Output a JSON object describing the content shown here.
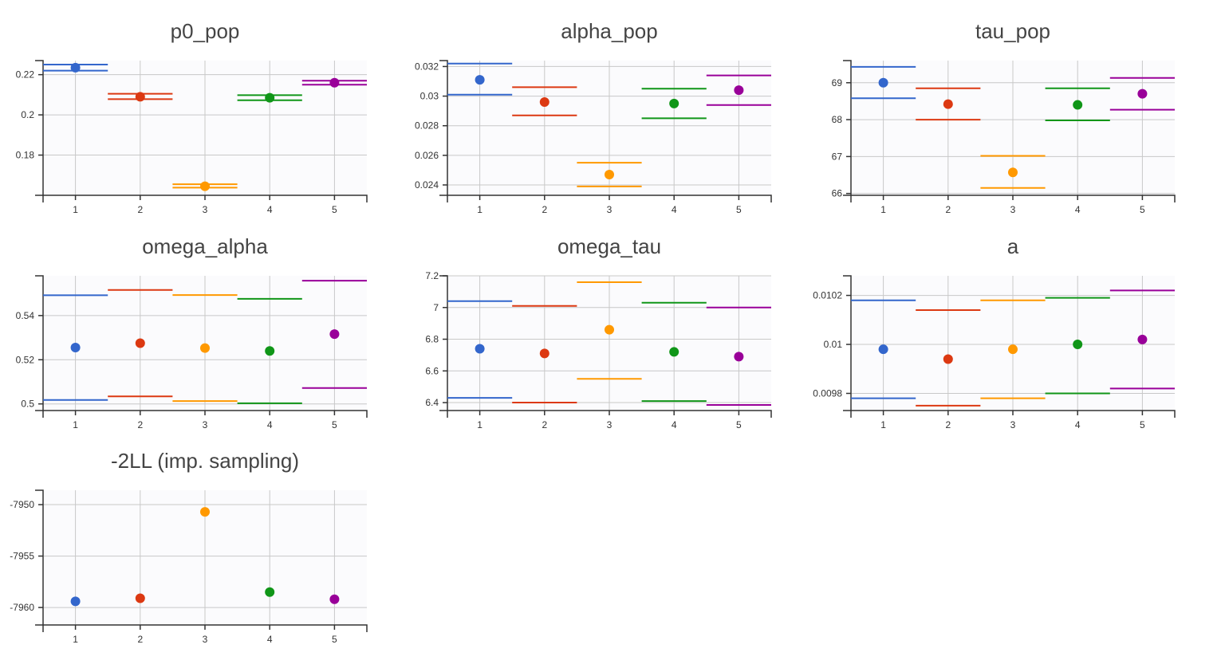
{
  "colors": [
    "#3366cc",
    "#dc3912",
    "#ff9900",
    "#109618",
    "#990099"
  ],
  "chart_data": [
    {
      "type": "scatter",
      "title": "p0_pop",
      "x": [
        1,
        2,
        3,
        4,
        5
      ],
      "xticks": [
        "1",
        "2",
        "3",
        "4",
        "5"
      ],
      "ylim": [
        0.16,
        0.227
      ],
      "yticks": [
        0.18,
        0.2,
        0.22
      ],
      "ytick_labels": [
        "0.18",
        "0.2",
        "0.22"
      ],
      "values": [
        0.2235,
        0.209,
        0.1645,
        0.2085,
        0.216
      ],
      "upper": [
        0.225,
        0.2105,
        0.1655,
        0.2098,
        0.217
      ],
      "lower": [
        0.222,
        0.2078,
        0.1638,
        0.2073,
        0.215
      ]
    },
    {
      "type": "scatter",
      "title": "alpha_pop",
      "x": [
        1,
        2,
        3,
        4,
        5
      ],
      "xticks": [
        "1",
        "2",
        "3",
        "4",
        "5"
      ],
      "ylim": [
        0.0233,
        0.0324
      ],
      "yticks": [
        0.024,
        0.026,
        0.028,
        0.03,
        0.032
      ],
      "ytick_labels": [
        "0.024",
        "0.026",
        "0.028",
        "0.03",
        "0.032"
      ],
      "values": [
        0.0311,
        0.0296,
        0.0247,
        0.0295,
        0.0304
      ],
      "upper": [
        0.0322,
        0.0306,
        0.0255,
        0.0305,
        0.0314
      ],
      "lower": [
        0.0301,
        0.0287,
        0.0239,
        0.0285,
        0.0294
      ]
    },
    {
      "type": "scatter",
      "title": "tau_pop",
      "x": [
        1,
        2,
        3,
        4,
        5
      ],
      "xticks": [
        "1",
        "2",
        "3",
        "4",
        "5"
      ],
      "ylim": [
        65.95,
        69.6
      ],
      "yticks": [
        66,
        67,
        68,
        69
      ],
      "ytick_labels": [
        "66",
        "67",
        "68",
        "69"
      ],
      "values": [
        69.0,
        68.42,
        66.57,
        68.4,
        68.7
      ],
      "upper": [
        69.43,
        68.85,
        67.02,
        68.85,
        69.13
      ],
      "lower": [
        68.58,
        68.0,
        66.15,
        67.98,
        68.27
      ]
    },
    {
      "type": "scatter",
      "title": "omega_alpha",
      "x": [
        1,
        2,
        3,
        4,
        5
      ],
      "xticks": [
        "1",
        "2",
        "3",
        "4",
        "5"
      ],
      "ylim": [
        0.497,
        0.558
      ],
      "yticks": [
        0.5,
        0.52,
        0.54
      ],
      "ytick_labels": [
        "0.5",
        "0.52",
        "0.54"
      ],
      "values": [
        0.5255,
        0.5275,
        0.5253,
        0.524,
        0.5316
      ],
      "upper": [
        0.5492,
        0.5516,
        0.5493,
        0.5476,
        0.5558
      ],
      "lower": [
        0.5018,
        0.5034,
        0.5013,
        0.5003,
        0.5072
      ]
    },
    {
      "type": "scatter",
      "title": "omega_tau",
      "x": [
        1,
        2,
        3,
        4,
        5
      ],
      "xticks": [
        "1",
        "2",
        "3",
        "4",
        "5"
      ],
      "ylim": [
        6.35,
        7.2
      ],
      "yticks": [
        6.4,
        6.6,
        6.8,
        7,
        7.2
      ],
      "ytick_labels": [
        "6.4",
        "6.6",
        "6.8",
        "7",
        "7.2"
      ],
      "values": [
        6.74,
        6.71,
        6.86,
        6.72,
        6.69
      ],
      "upper": [
        7.04,
        7.01,
        7.16,
        7.03,
        7.0
      ],
      "lower": [
        6.43,
        6.4,
        6.55,
        6.41,
        6.385
      ]
    },
    {
      "type": "scatter",
      "title": "a",
      "x": [
        1,
        2,
        3,
        4,
        5
      ],
      "xticks": [
        "1",
        "2",
        "3",
        "4",
        "5"
      ],
      "ylim": [
        0.00973,
        0.01028
      ],
      "yticks": [
        0.0098,
        0.01,
        0.0102
      ],
      "ytick_labels": [
        "0.0098",
        "0.01",
        "0.0102"
      ],
      "values": [
        0.00998,
        0.00994,
        0.00998,
        0.01,
        0.01002
      ],
      "upper": [
        0.01018,
        0.01014,
        0.01018,
        0.01019,
        0.01022
      ],
      "lower": [
        0.00978,
        0.00975,
        0.00978,
        0.0098,
        0.00982
      ]
    },
    {
      "type": "scatter",
      "title": "-2LL (imp. sampling)",
      "x": [
        1,
        2,
        3,
        4,
        5
      ],
      "xticks": [
        "1",
        "2",
        "3",
        "4",
        "5"
      ],
      "ylim": [
        -7961.7,
        -7948.6
      ],
      "yticks": [
        -7960,
        -7955,
        -7950
      ],
      "ytick_labels": [
        "-7960",
        "-7955",
        "-7950"
      ],
      "values": [
        -7959.4,
        -7959.1,
        -7950.7,
        -7958.5,
        -7959.2
      ],
      "upper": null,
      "lower": null
    }
  ]
}
